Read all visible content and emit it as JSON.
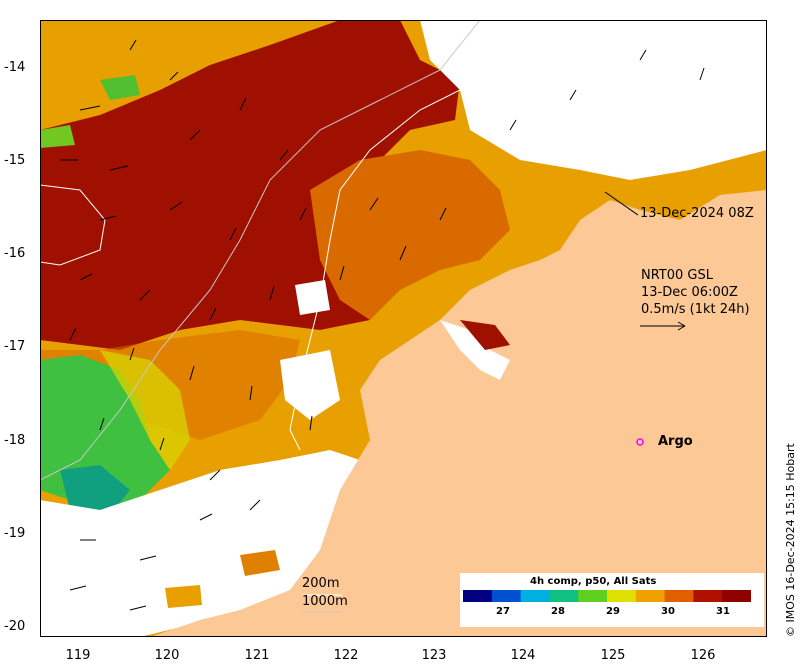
{
  "map": {
    "y_axis_ticks": [
      "-14",
      "-15",
      "-16",
      "-17",
      "-18",
      "-19",
      "-20"
    ],
    "x_axis_ticks": [
      "119",
      "120",
      "121",
      "122",
      "123",
      "124",
      "125",
      "126"
    ],
    "timestamp_label": "13-Dec-2024 08Z",
    "current_info": {
      "line1": "NRT00 GSL",
      "line2": "13-Dec 06:00Z",
      "line3": "0.5m/s (1kt 24h)"
    },
    "argo_label": "Argo",
    "depth_contours": {
      "line1": "200m",
      "line2": "1000m"
    },
    "credit": "© IMOS 16-Dec-2024 15:15 Hobart"
  },
  "legend": {
    "title": "4h comp, p50, All Sats",
    "ticks": [
      "27",
      "28",
      "29",
      "30",
      "31"
    ],
    "colors": [
      "#000080",
      "#0050d0",
      "#00b0e0",
      "#10c080",
      "#60d020",
      "#e0e000",
      "#f0a000",
      "#e06000",
      "#b01000",
      "#900000"
    ]
  },
  "colors": {
    "land": "#fcc896",
    "hot": "#a01000",
    "warm": "#d86a00",
    "mid": "#e8a000",
    "cool": "#40c040"
  }
}
